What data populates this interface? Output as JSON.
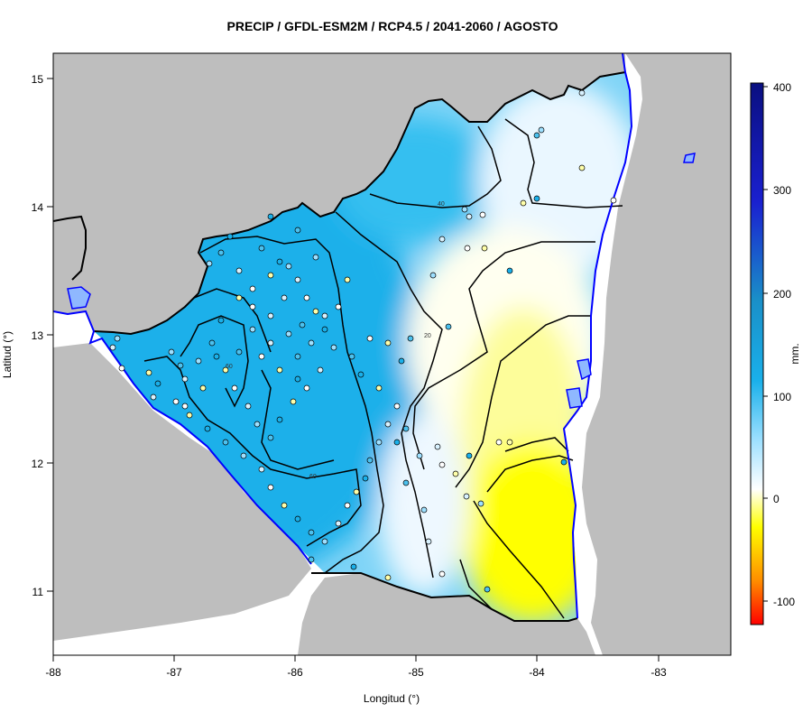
{
  "title": "PRECIP / GFDL-ESM2M / RCP4.5 / 2041-2060 / AGOSTO",
  "x_axis": {
    "label": "Longitud (°)",
    "ticks": [
      "-88",
      "-87",
      "-86",
      "-85",
      "-84",
      "-83"
    ],
    "range": [
      -88,
      -82.4
    ]
  },
  "y_axis": {
    "label": "Latitud (°)",
    "ticks": [
      "11",
      "12",
      "13",
      "14",
      "15"
    ],
    "range": [
      10.5,
      15.2
    ]
  },
  "colorbar": {
    "unit": "mm.",
    "ticks": [
      "400",
      "300",
      "200",
      "100",
      "0",
      "-100"
    ],
    "range": [
      -120,
      400
    ],
    "colors": [
      "#ff0000",
      "#ff8c00",
      "#ffff00",
      "#ffffff",
      "#9ee0ff",
      "#1ab0ea",
      "#1a8fc8",
      "#1a20d0",
      "#0a0f80"
    ]
  },
  "contour_labels": [
    "40",
    "20",
    "60",
    "60"
  ],
  "colors": {
    "land_outside": "#bebebe",
    "coast": "#0000ff",
    "border": "#000000",
    "wet": "#1ab0ea",
    "dry": "#ffff00"
  }
}
